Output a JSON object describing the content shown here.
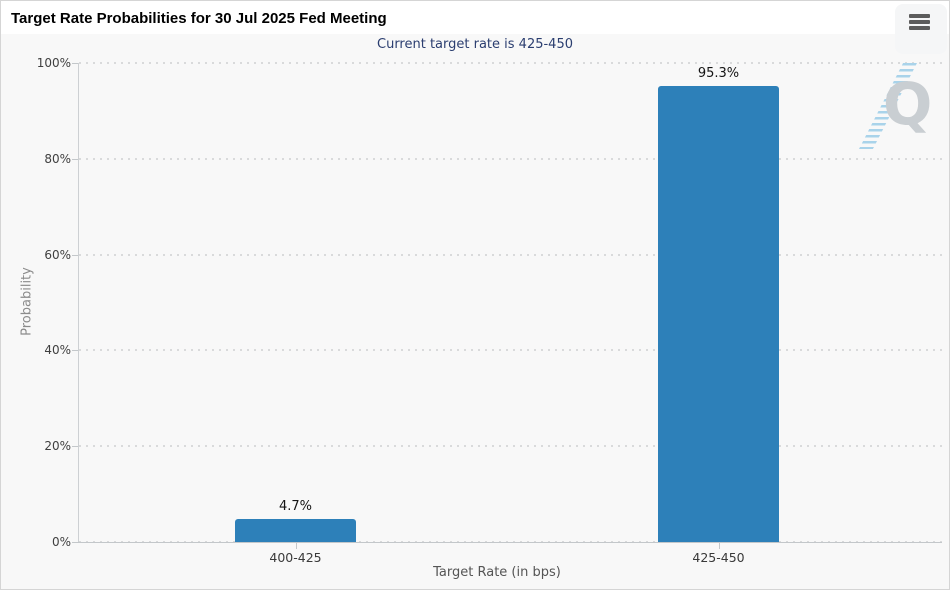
{
  "header": {
    "menu_icon": "hamburger-menu"
  },
  "watermark": {
    "letter": "Q"
  },
  "chart_data": {
    "type": "bar",
    "title": "Target Rate Probabilities for 30 Jul 2025 Fed Meeting",
    "subtitle": "Current target rate is 425-450",
    "categories": [
      "400-425",
      "425-450"
    ],
    "values": [
      4.7,
      95.3
    ],
    "value_labels": [
      "4.7%",
      "95.3%"
    ],
    "xlabel": "Target Rate (in bps)",
    "ylabel": "Probability",
    "ylim": [
      0,
      100
    ],
    "ytick_values": [
      0,
      20,
      40,
      60,
      80,
      100
    ],
    "ytick_labels": [
      "0%",
      "20%",
      "40%",
      "60%",
      "80%",
      "100%"
    ],
    "bar_color": "#2d80b9",
    "grid": "horizontal-dotted",
    "legend": "none"
  },
  "colors": {
    "bar": "#2d80b9",
    "subtitle_text": "#2b3e70",
    "page_background": "#f8f8f8",
    "header_background": "#ffffff",
    "gridline": "#d9dadb",
    "axis_line": "#c3c7ca",
    "watermark_q": "#c9ced2",
    "watermark_dashes": "#a9d3ea"
  }
}
